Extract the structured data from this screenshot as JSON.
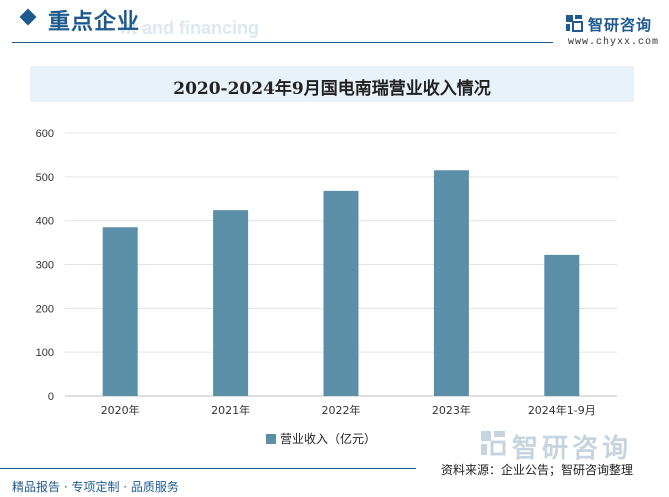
{
  "header": {
    "title": "重点企业",
    "ghost_text": "nt and financing",
    "brand_name": "智研咨询",
    "brand_url": "www.chyxx.com"
  },
  "watermark": {
    "text": "智研咨询"
  },
  "footer": {
    "left": "精品报告 · 专项定制 · 品质服务",
    "source": "资料来源：企业公告；智研咨询整理"
  },
  "colors": {
    "bar": "#5b8fa8",
    "accent": "#1f5a8f",
    "band": "#eaf2f9"
  },
  "chart_data": {
    "type": "bar",
    "title": "2020-2024年9月国电南瑞营业收入情况",
    "categories": [
      "2020年",
      "2021年",
      "2022年",
      "2023年",
      "2024年1-9月"
    ],
    "series": [
      {
        "name": "营业收入（亿元）",
        "values": [
          385,
          424,
          468,
          515,
          322
        ]
      }
    ],
    "xlabel": "",
    "ylabel": "",
    "ylim": [
      0,
      600
    ],
    "yticks": [
      0,
      100,
      200,
      300,
      400,
      500,
      600
    ],
    "grid": true,
    "legend": "bottom"
  }
}
